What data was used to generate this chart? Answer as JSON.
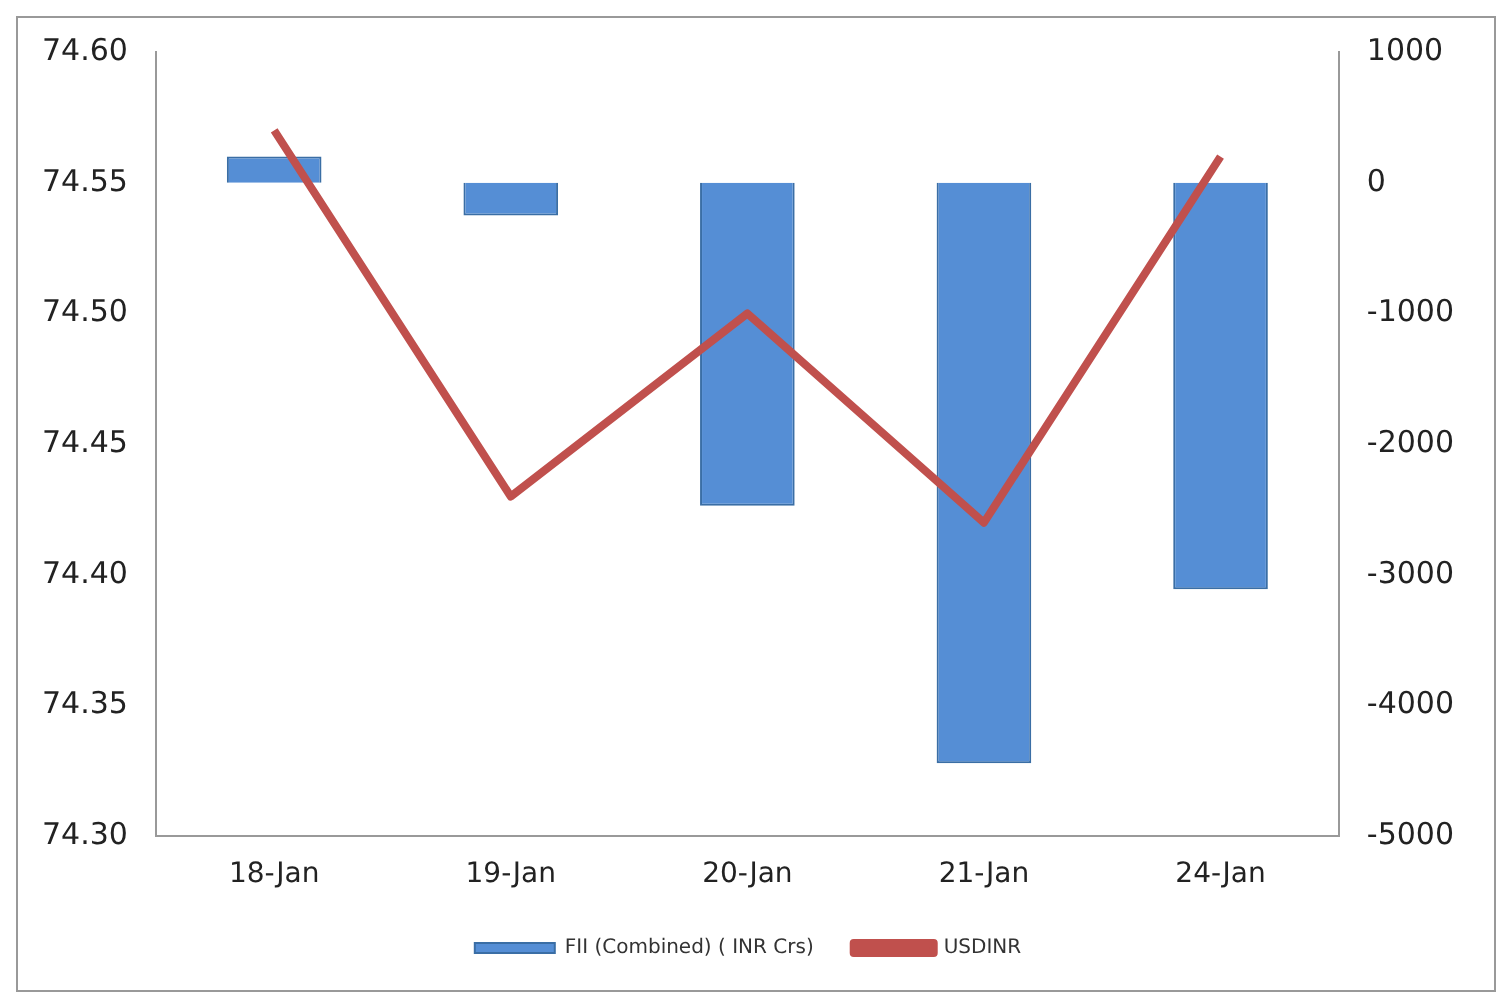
{
  "chart_data": {
    "type": "bar",
    "categories": [
      "18-Jan",
      "19-Jan",
      "20-Jan",
      "21-Jan",
      "24-Jan"
    ],
    "series": [
      {
        "name": "FII (Combined) ( INR Crs)",
        "axis": "y2",
        "color": "#558ed5",
        "values": [
          200,
          -250,
          -2470,
          -4440,
          -3110
        ]
      },
      {
        "name": "USDINR",
        "type": "line",
        "axis": "y",
        "color": "#c0504d",
        "values": [
          74.57,
          74.43,
          74.5,
          74.42,
          74.56
        ]
      }
    ],
    "ylim": [
      74.3,
      74.6
    ],
    "yticks": [
      {
        "value": 74.3,
        "label": "74.30"
      },
      {
        "value": 74.35,
        "label": "74.35"
      },
      {
        "value": 74.4,
        "label": "74.40"
      },
      {
        "value": 74.45,
        "label": "74.45"
      },
      {
        "value": 74.5,
        "label": "74.50"
      },
      {
        "value": 74.55,
        "label": "74.55"
      },
      {
        "value": 74.6,
        "label": "74.60"
      }
    ],
    "y2lim": [
      -5000,
      1000
    ],
    "y2ticks": [
      -5000,
      -4000,
      -3000,
      -2000,
      -1000,
      0,
      1000
    ],
    "grid": false,
    "legend": "bottom",
    "marker": "none",
    "line_style": "solid"
  }
}
